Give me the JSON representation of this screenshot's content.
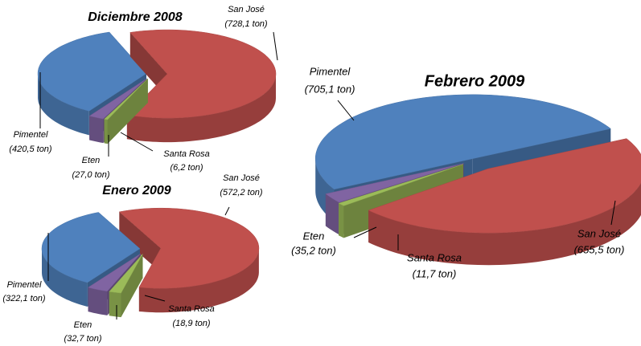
{
  "chart_data": [
    {
      "type": "pie",
      "title": "Diciembre 2008",
      "categories": [
        "San José",
        "Santa Rosa",
        "Eten",
        "Pimentel"
      ],
      "values": [
        728.1,
        6.2,
        27.0,
        420.5
      ],
      "value_labels": [
        "(728,1 ton)",
        "(6,2 ton)",
        "(27,0 ton)",
        "(420,5 ton)"
      ],
      "colors": [
        "#c0504d",
        "#9bbb59",
        "#8064a2",
        "#4f81bd"
      ]
    },
    {
      "type": "pie",
      "title": "Enero 2009",
      "categories": [
        "San José",
        "Santa Rosa",
        "Eten",
        "Pimentel"
      ],
      "values": [
        572.2,
        18.9,
        32.7,
        322.1
      ],
      "value_labels": [
        "(572,2 ton)",
        "(18,9 ton)",
        "(32,7 ton)",
        "(322,1 ton)"
      ],
      "colors": [
        "#c0504d",
        "#9bbb59",
        "#8064a2",
        "#4f81bd"
      ]
    },
    {
      "type": "pie",
      "title": "Febrero 2009",
      "categories": [
        "San José",
        "Santa Rosa",
        "Eten",
        "Pimentel"
      ],
      "values": [
        655.5,
        11.7,
        35.2,
        705.1
      ],
      "value_labels": [
        "(655,5 ton)",
        "(11,7 ton)",
        "(35,2 ton)",
        "(705,1 ton)"
      ],
      "colors": [
        "#c0504d",
        "#9bbb59",
        "#8064a2",
        "#4f81bd"
      ]
    }
  ]
}
